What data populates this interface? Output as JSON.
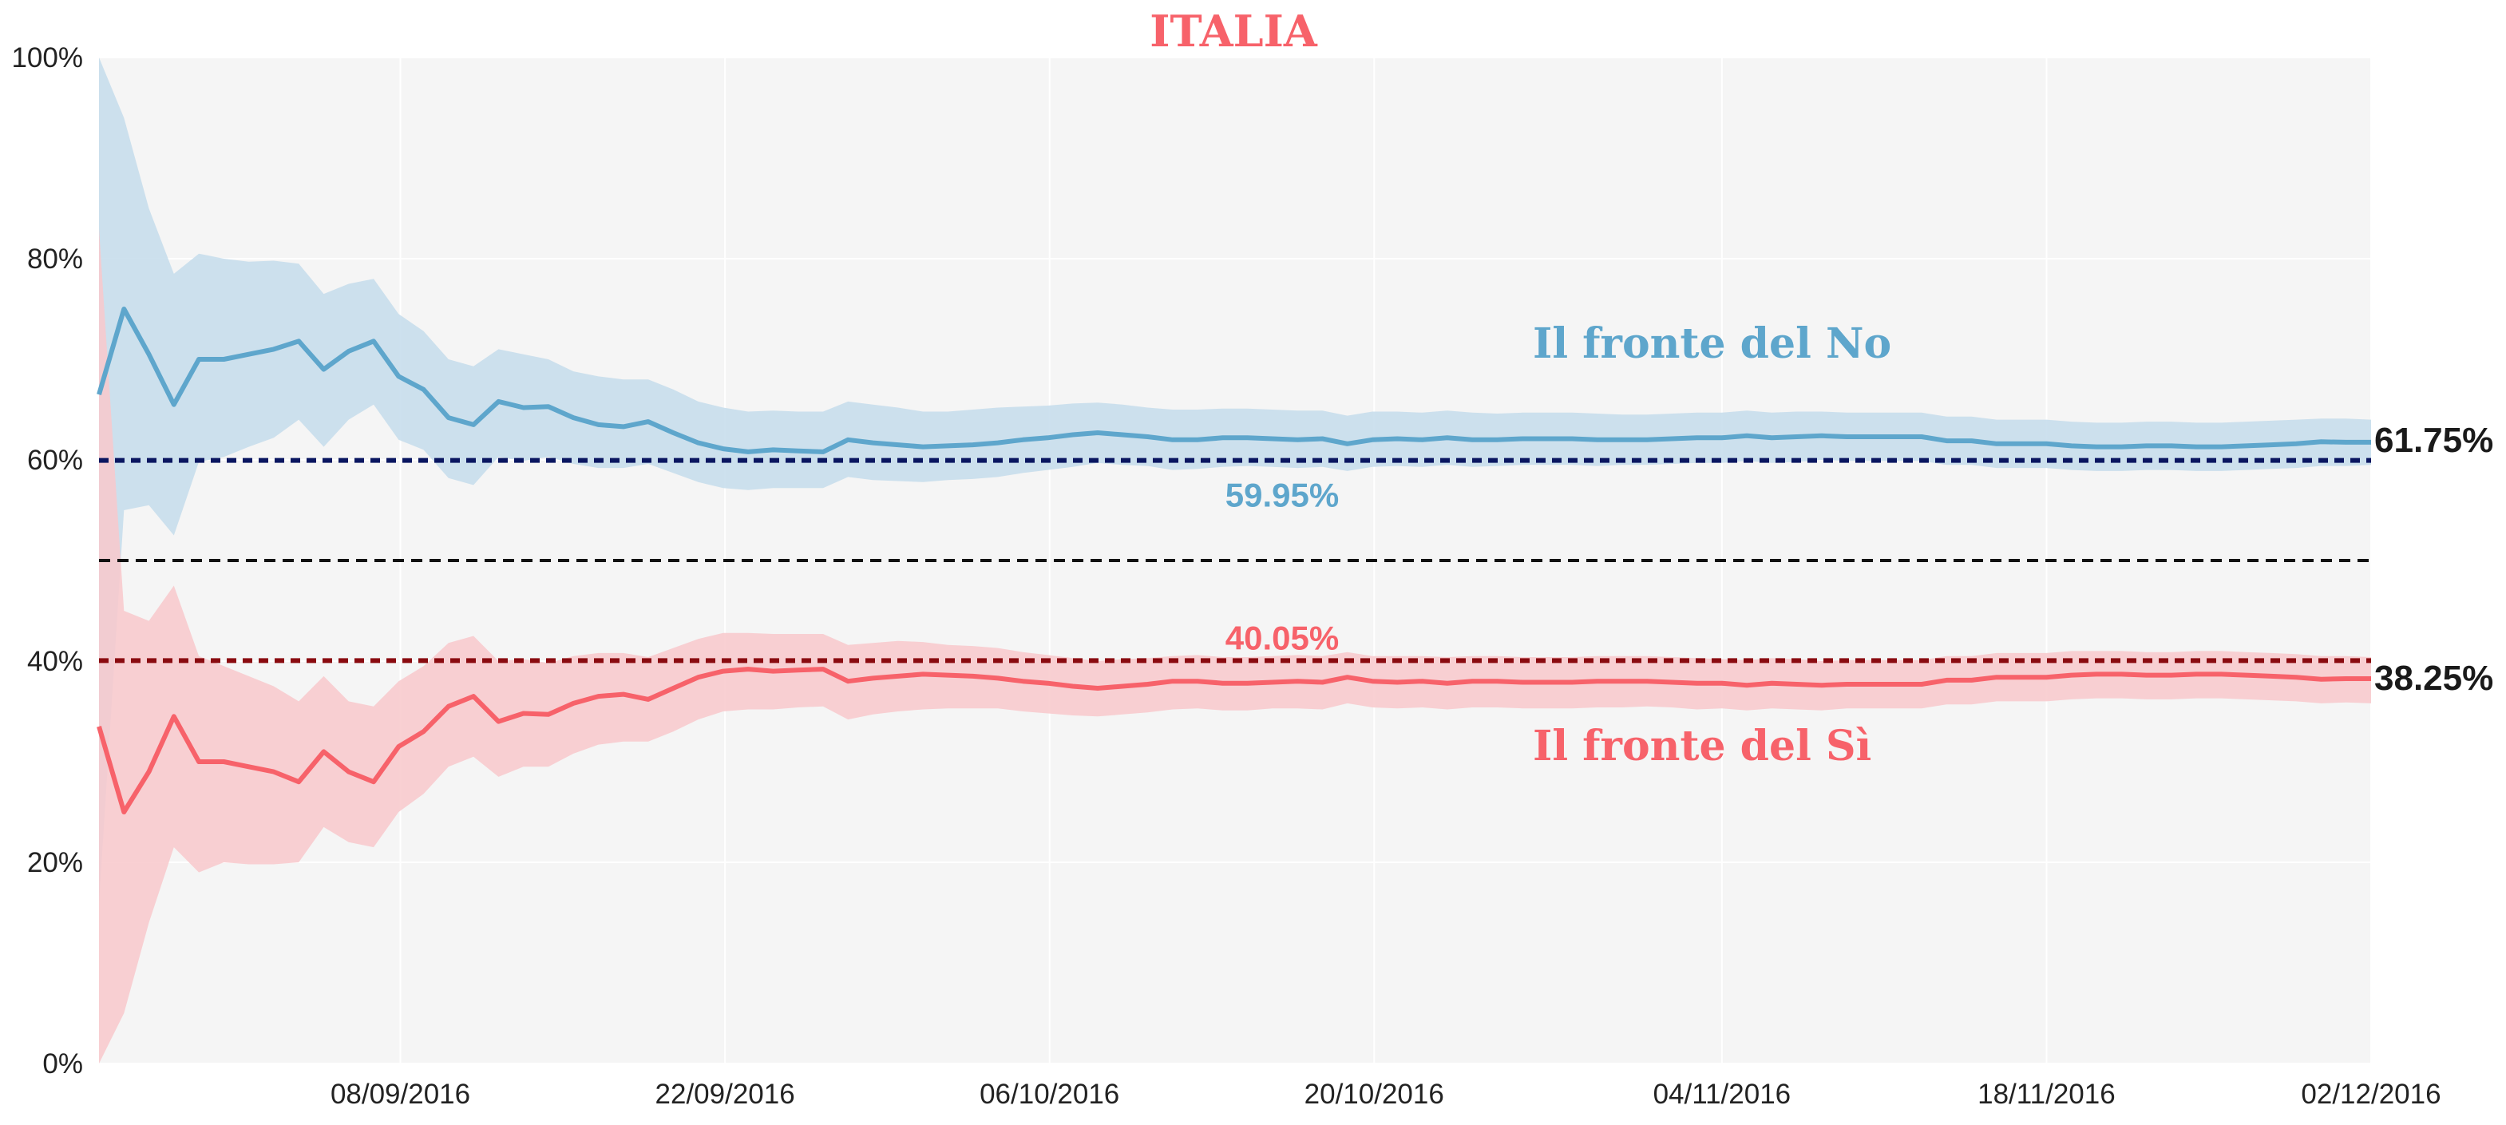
{
  "chart_data": {
    "type": "line",
    "title": "ITALIA",
    "ylim": [
      0,
      100
    ],
    "yticks": [
      0,
      20,
      40,
      60,
      80,
      100
    ],
    "ytick_labels": [
      "0%",
      "20%",
      "40%",
      "60%",
      "80%",
      "100%"
    ],
    "x_start": "2016-08-26",
    "x_end": "2016-12-02",
    "xtick_labels": [
      "08/09/2016",
      "22/09/2016",
      "06/10/2016",
      "20/10/2016",
      "04/11/2016",
      "18/11/2016",
      "02/12/2016"
    ],
    "xtick_dates": [
      "2016-09-08",
      "2016-09-22",
      "2016-10-06",
      "2016-10-20",
      "2016-11-04",
      "2016-11-18",
      "2016-12-02"
    ],
    "grid": true,
    "series": [
      {
        "name": "Il fronte del No",
        "color": "#5ea6cc",
        "band_color": "#c4dceb",
        "values": [
          66.5,
          75,
          70.5,
          65.5,
          70,
          70,
          70.5,
          71,
          71.8,
          69,
          70.8,
          71.8,
          68.3,
          67,
          64.2,
          63.5,
          65.8,
          65.2,
          65.3,
          64.2,
          63.5,
          63.3,
          63.8,
          62.7,
          61.7,
          61.1,
          60.8,
          61,
          60.9,
          60.8,
          62,
          61.7,
          61.5,
          61.3,
          61.4,
          61.5,
          61.7,
          62,
          62.2,
          62.5,
          62.7,
          62.5,
          62.3,
          62,
          62,
          62.2,
          62.2,
          62.1,
          62,
          62.1,
          61.6,
          62,
          62.1,
          62,
          62.2,
          62,
          62,
          62.1,
          62.1,
          62.1,
          62,
          62,
          62,
          62.1,
          62.2,
          62.2,
          62.4,
          62.2,
          62.3,
          62.4,
          62.3,
          62.3,
          62.3,
          62.3,
          61.9,
          61.9,
          61.6,
          61.6,
          61.6,
          61.4,
          61.3,
          61.3,
          61.4,
          61.4,
          61.3,
          61.3,
          61.4,
          61.5,
          61.6,
          61.8,
          61.75,
          61.75
        ],
        "upper": [
          100,
          94,
          85,
          78.5,
          80.5,
          80,
          79.7,
          79.8,
          79.5,
          76.5,
          77.5,
          78,
          74.5,
          72.8,
          70,
          69.3,
          71,
          70.5,
          70,
          68.8,
          68.3,
          68,
          68,
          67,
          65.8,
          65.2,
          64.8,
          64.9,
          64.8,
          64.8,
          65.8,
          65.5,
          65.2,
          64.8,
          64.8,
          65,
          65.2,
          65.3,
          65.4,
          65.6,
          65.7,
          65.5,
          65.2,
          65,
          65,
          65.1,
          65.1,
          65,
          64.9,
          64.9,
          64.4,
          64.8,
          64.8,
          64.7,
          64.9,
          64.7,
          64.6,
          64.7,
          64.7,
          64.7,
          64.6,
          64.5,
          64.5,
          64.6,
          64.7,
          64.7,
          64.9,
          64.7,
          64.8,
          64.8,
          64.7,
          64.7,
          64.7,
          64.7,
          64.3,
          64.3,
          64,
          64,
          64,
          63.8,
          63.7,
          63.7,
          63.8,
          63.8,
          63.7,
          63.7,
          63.8,
          63.9,
          64,
          64.1,
          64.1,
          64
        ],
        "lower": [
          16,
          55,
          55.5,
          52.5,
          59.8,
          60.3,
          61.3,
          62.2,
          64,
          61.3,
          64,
          65.5,
          62,
          61,
          58.2,
          57.5,
          60.3,
          59.9,
          60.3,
          59.6,
          59.2,
          59.2,
          59.6,
          58.7,
          57.8,
          57.2,
          57,
          57.2,
          57.2,
          57.2,
          58.3,
          58,
          57.9,
          57.8,
          58,
          58.1,
          58.3,
          58.7,
          59,
          59.3,
          59.7,
          59.5,
          59.4,
          59,
          59.1,
          59.3,
          59.4,
          59.3,
          59.2,
          59.3,
          58.9,
          59.3,
          59.4,
          59.3,
          59.5,
          59.3,
          59.4,
          59.5,
          59.5,
          59.5,
          59.4,
          59.5,
          59.5,
          59.6,
          59.7,
          59.7,
          59.9,
          59.7,
          59.8,
          60,
          59.9,
          59.9,
          59.9,
          59.9,
          59.5,
          59.5,
          59.2,
          59.2,
          59.2,
          59,
          58.9,
          58.9,
          59,
          59,
          58.9,
          58.9,
          59,
          59.1,
          59.2,
          59.4,
          59.4,
          59.5
        ]
      },
      {
        "name": "Il fronte del Sì",
        "color": "#f7626a",
        "band_color": "#f8c8cb",
        "values": [
          33.5,
          25,
          29,
          34.5,
          30,
          30,
          29.5,
          29,
          28,
          31,
          29,
          28,
          31.5,
          33,
          35.5,
          36.5,
          34,
          34.8,
          34.7,
          35.8,
          36.5,
          36.7,
          36.2,
          37.3,
          38.4,
          39,
          39.2,
          39,
          39.1,
          39.2,
          38,
          38.3,
          38.5,
          38.7,
          38.6,
          38.5,
          38.3,
          38,
          37.8,
          37.5,
          37.3,
          37.5,
          37.7,
          38,
          38,
          37.8,
          37.8,
          37.9,
          38,
          37.9,
          38.4,
          38,
          37.9,
          38,
          37.8,
          38,
          38,
          37.9,
          37.9,
          37.9,
          38,
          38,
          38,
          37.9,
          37.8,
          37.8,
          37.6,
          37.8,
          37.7,
          37.6,
          37.7,
          37.7,
          37.7,
          37.7,
          38.1,
          38.1,
          38.4,
          38.4,
          38.4,
          38.6,
          38.7,
          38.7,
          38.6,
          38.6,
          38.7,
          38.7,
          38.6,
          38.5,
          38.4,
          38.2,
          38.25,
          38.25
        ],
        "upper": [
          83,
          45,
          44,
          47.5,
          40.5,
          39.5,
          38.5,
          37.5,
          36,
          38.5,
          36,
          35.5,
          38,
          39.5,
          41.8,
          42.5,
          40,
          40.2,
          39.8,
          40.5,
          40.8,
          40.8,
          40.4,
          41.3,
          42.2,
          42.8,
          42.8,
          42.7,
          42.7,
          42.7,
          41.6,
          41.8,
          42,
          41.9,
          41.6,
          41.5,
          41.3,
          40.9,
          40.6,
          40.3,
          40,
          40.2,
          40.3,
          40.5,
          40.6,
          40.4,
          40.4,
          40.5,
          40.6,
          40.5,
          40.9,
          40.5,
          40.5,
          40.5,
          40.4,
          40.5,
          40.5,
          40.4,
          40.4,
          40.4,
          40.5,
          40.5,
          40.5,
          40.4,
          40.3,
          40.2,
          40.1,
          40.3,
          40.2,
          40,
          40.1,
          40.1,
          40.1,
          40.1,
          40.5,
          40.5,
          40.8,
          40.8,
          40.8,
          41,
          41,
          41,
          40.9,
          40.9,
          41,
          41,
          40.9,
          40.8,
          40.7,
          40.5,
          40.5,
          40.4
        ],
        "lower": [
          0,
          5,
          14,
          21.5,
          19,
          20,
          19.8,
          19.8,
          20,
          23.5,
          22,
          21.5,
          25,
          26.8,
          29.5,
          30.5,
          28.5,
          29.5,
          29.5,
          30.8,
          31.7,
          32,
          32,
          33,
          34.2,
          35,
          35.2,
          35.2,
          35.4,
          35.5,
          34.2,
          34.7,
          35,
          35.2,
          35.3,
          35.3,
          35.3,
          35,
          34.8,
          34.6,
          34.5,
          34.7,
          34.9,
          35.2,
          35.3,
          35.1,
          35.1,
          35.3,
          35.3,
          35.2,
          35.8,
          35.4,
          35.3,
          35.4,
          35.2,
          35.4,
          35.4,
          35.3,
          35.3,
          35.3,
          35.4,
          35.4,
          35.5,
          35.4,
          35.2,
          35.3,
          35.1,
          35.3,
          35.2,
          35.1,
          35.3,
          35.3,
          35.3,
          35.3,
          35.7,
          35.7,
          36,
          36,
          36,
          36.2,
          36.3,
          36.3,
          36.2,
          36.2,
          36.3,
          36.3,
          36.2,
          36.1,
          36,
          35.8,
          35.9,
          35.8
        ]
      }
    ],
    "reference_lines": [
      {
        "value": 59.95,
        "label": "59.95%",
        "color": "#0a1660",
        "label_color": "#5ea6cc"
      },
      {
        "value": 50,
        "label": "",
        "color": "#111111"
      },
      {
        "value": 40.05,
        "label": "40.05%",
        "color": "#8a0b10",
        "label_color": "#f7626a"
      }
    ],
    "end_labels": [
      "61.75%",
      "38.25%"
    ],
    "title_color": "#f7626a"
  }
}
